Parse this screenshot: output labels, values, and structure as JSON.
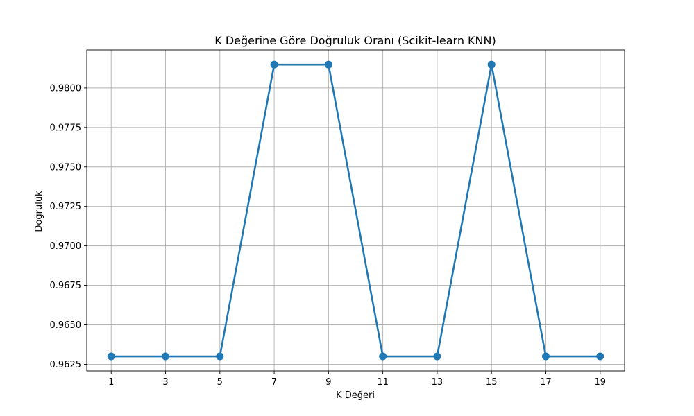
{
  "chart_data": {
    "type": "line",
    "title": "K Değerine Göre Doğruluk Oranı (Scikit-learn KNN)",
    "xlabel": "K Değeri",
    "ylabel": "Doğruluk",
    "x": [
      1,
      3,
      5,
      7,
      9,
      11,
      13,
      15,
      17,
      19
    ],
    "x_tick_labels": [
      "1",
      "3",
      "5",
      "7",
      "9",
      "11",
      "13",
      "15",
      "17",
      "19"
    ],
    "series": [
      {
        "values": [
          0.963,
          0.963,
          0.963,
          0.98148,
          0.98148,
          0.963,
          0.963,
          0.98148,
          0.963,
          0.963
        ],
        "color": "#1f77b4",
        "marker": "circle"
      }
    ],
    "y_ticks": [
      0.9625,
      0.965,
      0.9675,
      0.97,
      0.9725,
      0.975,
      0.9775,
      0.98
    ],
    "y_tick_labels": [
      "0.9625",
      "0.9650",
      "0.9675",
      "0.9700",
      "0.9725",
      "0.9750",
      "0.9775",
      "0.9800"
    ],
    "xlim": [
      0.1,
      19.9
    ],
    "ylim": [
      0.96208,
      0.98241
    ],
    "grid": true
  }
}
